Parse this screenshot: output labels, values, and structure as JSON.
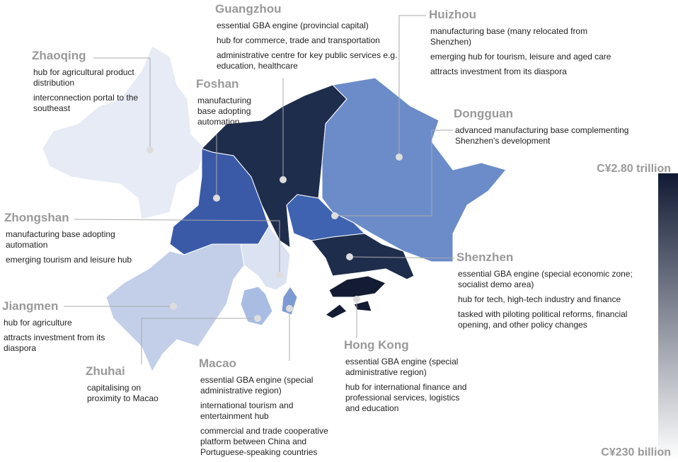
{
  "cities": [
    {
      "name": "Guangzhou",
      "notes": [
        "essential GBA engine (provincial capital)",
        "hub for commerce, trade and transportation",
        "administrative centre for key public services e.g. education, healthcare"
      ]
    },
    {
      "name": "Huizhou",
      "notes": [
        "manufacturing base (many relocated from Shenzhen)",
        "emerging hub for tourism, leisure and aged care",
        "attracts investment from its diaspora"
      ]
    },
    {
      "name": "Zhaoqing",
      "notes": [
        "hub for agricultural product distribution",
        "interconnection portal to the southeast"
      ]
    },
    {
      "name": "Foshan",
      "notes": [
        "manufacturing base adopting automation"
      ]
    },
    {
      "name": "Dongguan",
      "notes": [
        "advanced manufacturing base complementing Shenzhen's development"
      ]
    },
    {
      "name": "Zhongshan",
      "notes": [
        "manufacturing base adopting automation",
        "emerging tourism and leisure hub"
      ]
    },
    {
      "name": "Shenzhen",
      "notes": [
        "essential GBA engine (special economic zone; socialist demo area)",
        "hub for tech, high-tech industry and finance",
        "tasked with piloting political reforms, financial opening, and other policy changes"
      ]
    },
    {
      "name": "Jiangmen",
      "notes": [
        "hub for agriculture",
        "attracts investment from its diaspora"
      ]
    },
    {
      "name": "Hong Kong",
      "notes": [
        "essential GBA engine (special administrative region)",
        "hub for international finance and professional services, logistics and education"
      ]
    },
    {
      "name": "Zhuhai",
      "notes": [
        "capitalising on proximity to Macao"
      ]
    },
    {
      "name": "Macao",
      "notes": [
        "essential GBA engine (special administrative region)",
        "international tourism and entertainment hub",
        "commercial and trade cooperative platform between China and Portuguese-speaking countries"
      ]
    }
  ],
  "legend": {
    "max": "C¥2.80 trillion",
    "min": "C¥230 billion"
  }
}
